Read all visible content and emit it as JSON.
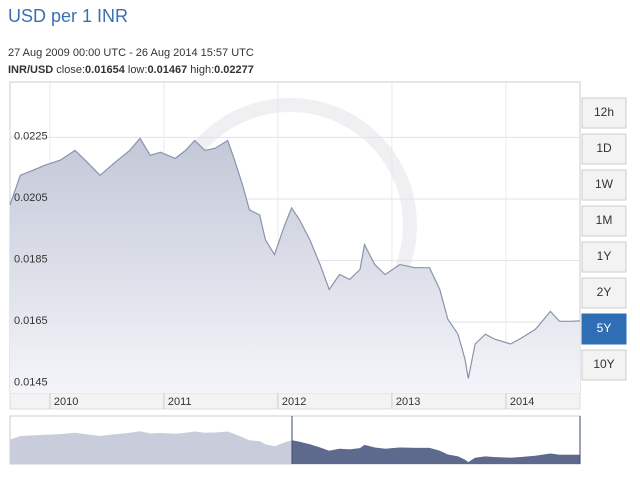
{
  "title": "USD per 1 INR",
  "date_range": "27 Aug 2009 00:00 UTC - 26 Aug 2014 15:57 UTC",
  "pair": "INR/USD",
  "stats": [
    {
      "label": "close:",
      "value": 0.01654
    },
    {
      "label": "low:",
      "value": 0.01467
    },
    {
      "label": "high:",
      "value": 0.02277
    }
  ],
  "ranges": [
    "12h",
    "1D",
    "1W",
    "1M",
    "1Y",
    "2Y",
    "5Y",
    "10Y"
  ],
  "active_range": "5Y",
  "chart_data": {
    "type": "area",
    "color": "#8a93ad",
    "fill": "#c9cddb",
    "x": [
      2009.65,
      2009.74,
      2009.83,
      2009.96,
      2010.09,
      2010.22,
      2010.31,
      2010.44,
      2010.57,
      2010.7,
      2010.79,
      2010.88,
      2010.97,
      2011.1,
      2011.19,
      2011.27,
      2011.36,
      2011.45,
      2011.56,
      2011.62,
      2011.69,
      2011.75,
      2011.84,
      2011.89,
      2011.97,
      2012.06,
      2012.12,
      2012.19,
      2012.28,
      2012.37,
      2012.45,
      2012.54,
      2012.63,
      2012.72,
      2012.76,
      2012.85,
      2012.94,
      2013.07,
      2013.2,
      2013.33,
      2013.42,
      2013.49,
      2013.58,
      2013.64,
      2013.67,
      2013.73,
      2013.82,
      2013.9,
      2014.04,
      2014.12,
      2014.26,
      2014.39,
      2014.47,
      2014.56,
      2014.65
    ],
    "values": [
      0.02031,
      0.02127,
      0.0214,
      0.0216,
      0.02176,
      0.02208,
      0.02176,
      0.02127,
      0.02169,
      0.02208,
      0.02247,
      0.02192,
      0.02202,
      0.02182,
      0.02208,
      0.0224,
      0.02208,
      0.02215,
      0.0224,
      0.02176,
      0.02095,
      0.02015,
      0.01998,
      0.01918,
      0.01869,
      0.01966,
      0.02021,
      0.01982,
      0.01918,
      0.01837,
      0.01756,
      0.01805,
      0.01789,
      0.01821,
      0.01902,
      0.01837,
      0.01805,
      0.01837,
      0.01827,
      0.01827,
      0.01756,
      0.0166,
      0.01611,
      0.01531,
      0.01467,
      0.01579,
      0.01611,
      0.01595,
      0.01579,
      0.01595,
      0.01627,
      0.01685,
      0.01653,
      0.01653,
      0.01654
    ],
    "xlim": [
      2009.65,
      2014.65
    ],
    "xticks": [
      2010,
      2011,
      2012,
      2013,
      2014
    ],
    "ylim": [
      0.0142,
      0.0243
    ],
    "yticks": [
      0.0145,
      0.0165,
      0.0185,
      0.0205,
      0.0225
    ],
    "grid": true
  }
}
